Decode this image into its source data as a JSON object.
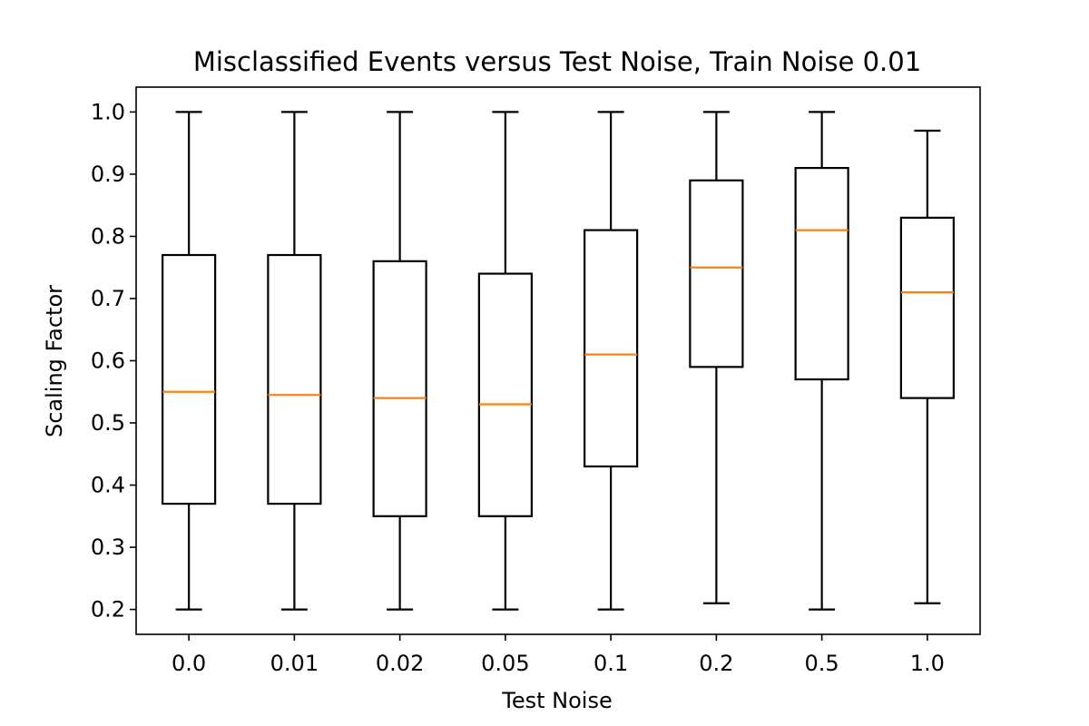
{
  "chart_data": {
    "type": "box",
    "title": "Misclassified Events versus Test Noise, Train Noise 0.01",
    "xlabel": "Test Noise",
    "ylabel": "Scaling Factor",
    "ylim": [
      0.16,
      1.04
    ],
    "yticks": [
      "0.2",
      "0.3",
      "0.4",
      "0.5",
      "0.6",
      "0.7",
      "0.8",
      "0.9",
      "1.0"
    ],
    "grid": false,
    "categories": [
      "0.0",
      "0.01",
      "0.02",
      "0.05",
      "0.1",
      "0.2",
      "0.5",
      "1.0"
    ],
    "boxes": [
      {
        "min": 0.2,
        "q1": 0.37,
        "median": 0.55,
        "q3": 0.77,
        "max": 1.0
      },
      {
        "min": 0.2,
        "q1": 0.37,
        "median": 0.545,
        "q3": 0.77,
        "max": 1.0
      },
      {
        "min": 0.2,
        "q1": 0.35,
        "median": 0.54,
        "q3": 0.76,
        "max": 1.0
      },
      {
        "min": 0.2,
        "q1": 0.35,
        "median": 0.53,
        "q3": 0.74,
        "max": 1.0
      },
      {
        "min": 0.2,
        "q1": 0.43,
        "median": 0.61,
        "q3": 0.81,
        "max": 1.0
      },
      {
        "min": 0.21,
        "q1": 0.59,
        "median": 0.75,
        "q3": 0.89,
        "max": 1.0
      },
      {
        "min": 0.2,
        "q1": 0.57,
        "median": 0.81,
        "q3": 0.91,
        "max": 1.0
      },
      {
        "min": 0.21,
        "q1": 0.54,
        "median": 0.71,
        "q3": 0.83,
        "max": 0.97
      }
    ],
    "colors": {
      "box": "#000000",
      "median": "#ff7f0e"
    }
  }
}
